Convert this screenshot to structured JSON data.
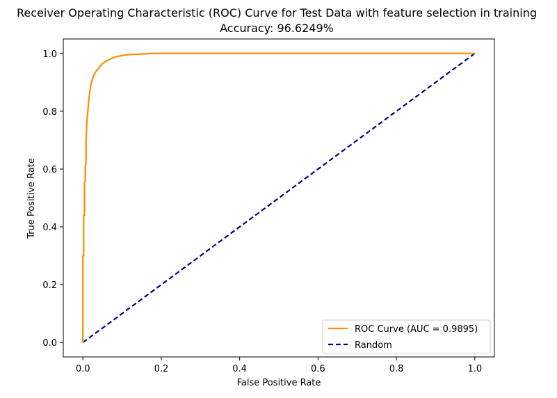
{
  "chart_data": {
    "type": "line",
    "title": "Receiver Operating Characteristic (ROC) Curve for Test Data with feature selection in training",
    "subtitle": "Accuracy: 96.6249%",
    "xlabel": "False Positive Rate",
    "ylabel": "True Positive Rate",
    "xlim": [
      -0.05,
      1.05
    ],
    "ylim": [
      -0.05,
      1.05
    ],
    "xticks": [
      0.0,
      0.2,
      0.4,
      0.6,
      0.8,
      1.0
    ],
    "yticks": [
      0.0,
      0.2,
      0.4,
      0.6,
      0.8,
      1.0
    ],
    "xtick_labels": [
      "0.0",
      "0.2",
      "0.4",
      "0.6",
      "0.8",
      "1.0"
    ],
    "ytick_labels": [
      "0.0",
      "0.2",
      "0.4",
      "0.6",
      "0.8",
      "1.0"
    ],
    "grid": false,
    "legend_position": "lower-right",
    "series": [
      {
        "name": "ROC Curve (AUC = 0.9895)",
        "color": "#ff8c00",
        "style": "solid",
        "x": [
          0.0,
          0.0,
          0.002,
          0.002,
          0.004,
          0.004,
          0.006,
          0.006,
          0.008,
          0.008,
          0.01,
          0.012,
          0.014,
          0.016,
          0.018,
          0.02,
          0.024,
          0.028,
          0.032,
          0.038,
          0.044,
          0.05,
          0.058,
          0.066,
          0.076,
          0.086,
          0.1,
          0.12,
          0.15,
          0.18,
          1.0
        ],
        "y": [
          0.0,
          0.3,
          0.3,
          0.44,
          0.44,
          0.55,
          0.56,
          0.61,
          0.62,
          0.69,
          0.76,
          0.79,
          0.82,
          0.85,
          0.87,
          0.89,
          0.91,
          0.925,
          0.935,
          0.945,
          0.955,
          0.965,
          0.972,
          0.978,
          0.984,
          0.989,
          0.993,
          0.996,
          0.998,
          1.0,
          1.0
        ]
      },
      {
        "name": "Random",
        "color": "#000080",
        "style": "dashed",
        "x": [
          0.0,
          1.0
        ],
        "y": [
          0.0,
          1.0
        ]
      }
    ]
  }
}
